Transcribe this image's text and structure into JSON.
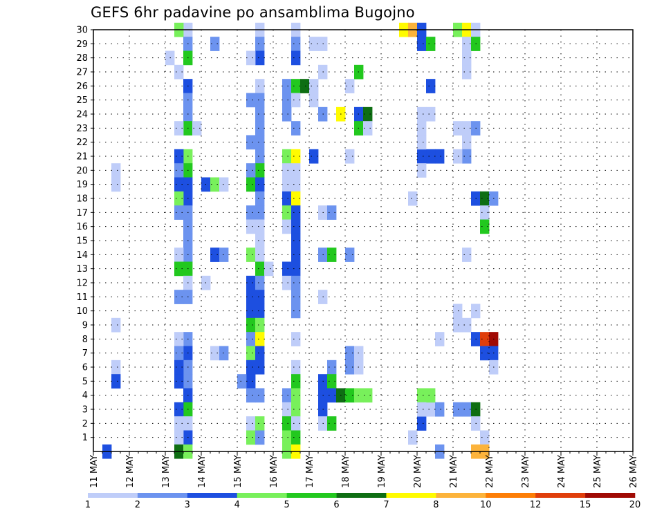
{
  "chart_data": {
    "type": "heatmap",
    "title": "GEFS 6hr padavine po ansamblima Bugojno",
    "xlabel": "",
    "ylabel": "",
    "x_range": [
      "11 MAY 00Z",
      "26 MAY 00Z"
    ],
    "x_step_hours": 6,
    "x_tick_labels": [
      "11 MAY",
      "12 MAY",
      "13 MAY",
      "14 MAY",
      "15 MAY",
      "16 MAY",
      "17 MAY",
      "18 MAY",
      "19 MAY",
      "20 MAY",
      "21 MAY",
      "22 MAY",
      "23 MAY",
      "24 MAY",
      "25 MAY",
      "26 MAY"
    ],
    "y_range": [
      0,
      30
    ],
    "y_tick_labels": [
      "1",
      "2",
      "3",
      "4",
      "5",
      "6",
      "7",
      "8",
      "9",
      "10",
      "11",
      "12",
      "13",
      "14",
      "15",
      "16",
      "17",
      "18",
      "19",
      "20",
      "21",
      "22",
      "23",
      "24",
      "25",
      "26",
      "27",
      "28",
      "29",
      "30"
    ],
    "grid": true,
    "colorbar": {
      "placement": "bottom",
      "tick_labels": [
        "1",
        "2",
        "3",
        "4",
        "5",
        "6",
        "7",
        "8",
        "10",
        "12",
        "15",
        "20"
      ],
      "colors": [
        "#bfcdf9",
        "#6c93ef",
        "#1d4fe0",
        "#78f05b",
        "#22c81e",
        "#0e6e13",
        "#fffb00",
        "#fcb33b",
        "#fd7e06",
        "#e03e0b",
        "#a00a04"
      ]
    },
    "cells": [
      [
        10,
        30,
        1
      ],
      [
        9,
        30,
        4
      ],
      [
        10,
        29,
        2
      ],
      [
        10,
        28,
        5
      ],
      [
        8,
        28,
        1
      ],
      [
        9,
        27,
        1
      ],
      [
        10,
        26,
        3
      ],
      [
        10,
        25,
        2
      ],
      [
        10,
        24,
        2
      ],
      [
        10,
        23,
        5
      ],
      [
        9,
        23,
        1
      ],
      [
        11,
        23,
        1
      ],
      [
        10,
        21,
        4
      ],
      [
        9,
        21,
        3
      ],
      [
        10,
        20,
        5
      ],
      [
        9,
        20,
        2
      ],
      [
        10,
        19,
        3
      ],
      [
        9,
        19,
        3
      ],
      [
        10,
        18,
        3
      ],
      [
        9,
        18,
        4
      ],
      [
        10,
        17,
        2
      ],
      [
        9,
        17,
        2
      ],
      [
        10,
        16,
        2
      ],
      [
        10,
        15,
        2
      ],
      [
        10,
        14,
        2
      ],
      [
        9,
        14,
        1
      ],
      [
        10,
        13,
        5
      ],
      [
        9,
        13,
        5
      ],
      [
        10,
        12,
        1
      ],
      [
        10,
        11,
        2
      ],
      [
        9,
        11,
        2
      ],
      [
        10,
        8,
        2
      ],
      [
        9,
        8,
        1
      ],
      [
        10,
        7,
        3
      ],
      [
        9,
        7,
        2
      ],
      [
        10,
        6,
        2
      ],
      [
        9,
        6,
        3
      ],
      [
        10,
        5,
        2
      ],
      [
        9,
        5,
        3
      ],
      [
        10,
        4,
        3
      ],
      [
        10,
        3,
        5
      ],
      [
        9,
        3,
        3
      ],
      [
        10,
        2,
        1
      ],
      [
        9,
        2,
        1
      ],
      [
        10,
        1,
        3
      ],
      [
        9,
        1,
        1
      ],
      [
        9,
        0,
        6
      ],
      [
        10,
        0,
        4
      ],
      [
        2,
        20,
        1
      ],
      [
        2,
        19,
        1
      ],
      [
        2,
        9,
        1
      ],
      [
        2,
        6,
        1
      ],
      [
        2,
        5,
        3
      ],
      [
        1,
        0,
        3
      ],
      [
        13,
        29,
        2
      ],
      [
        12,
        19,
        3
      ],
      [
        13,
        19,
        4
      ],
      [
        14,
        19,
        1
      ],
      [
        13,
        14,
        3
      ],
      [
        14,
        14,
        2
      ],
      [
        13,
        7,
        1
      ],
      [
        14,
        7,
        2
      ],
      [
        12,
        12,
        1
      ],
      [
        18,
        30,
        1
      ],
      [
        18,
        29,
        2
      ],
      [
        18,
        28,
        3
      ],
      [
        17,
        28,
        1
      ],
      [
        18,
        26,
        1
      ],
      [
        17,
        25,
        2
      ],
      [
        18,
        25,
        2
      ],
      [
        18,
        24,
        2
      ],
      [
        18,
        23,
        2
      ],
      [
        18,
        22,
        2
      ],
      [
        17,
        22,
        2
      ],
      [
        18,
        21,
        2
      ],
      [
        18,
        20,
        5
      ],
      [
        17,
        20,
        2
      ],
      [
        17,
        19,
        5
      ],
      [
        18,
        19,
        3
      ],
      [
        18,
        18,
        2
      ],
      [
        18,
        17,
        2
      ],
      [
        17,
        17,
        2
      ],
      [
        18,
        16,
        1
      ],
      [
        17,
        16,
        1
      ],
      [
        18,
        15,
        1
      ],
      [
        17,
        14,
        4
      ],
      [
        18,
        14,
        1
      ],
      [
        18,
        13,
        5
      ],
      [
        19,
        13,
        1
      ],
      [
        17,
        12,
        3
      ],
      [
        18,
        12,
        2
      ],
      [
        17,
        11,
        3
      ],
      [
        18,
        11,
        3
      ],
      [
        17,
        10,
        3
      ],
      [
        18,
        10,
        3
      ],
      [
        17,
        9,
        5
      ],
      [
        18,
        9,
        4
      ],
      [
        17,
        8,
        2
      ],
      [
        18,
        8,
        7
      ],
      [
        17,
        7,
        4
      ],
      [
        18,
        7,
        3
      ],
      [
        17,
        6,
        3
      ],
      [
        18,
        6,
        3
      ],
      [
        17,
        5,
        3
      ],
      [
        16,
        5,
        2
      ],
      [
        17,
        4,
        2
      ],
      [
        18,
        4,
        2
      ],
      [
        17,
        2,
        1
      ],
      [
        18,
        2,
        4
      ],
      [
        17,
        1,
        4
      ],
      [
        18,
        1,
        2
      ],
      [
        22,
        30,
        1
      ],
      [
        22,
        29,
        2
      ],
      [
        22,
        28,
        3
      ],
      [
        21,
        26,
        2
      ],
      [
        22,
        26,
        5
      ],
      [
        23,
        26,
        6
      ],
      [
        24,
        26,
        1
      ],
      [
        21,
        25,
        2
      ],
      [
        22,
        25,
        1
      ],
      [
        21,
        24,
        2
      ],
      [
        22,
        23,
        2
      ],
      [
        21,
        21,
        4
      ],
      [
        22,
        21,
        7
      ],
      [
        21,
        20,
        1
      ],
      [
        22,
        20,
        1
      ],
      [
        21,
        19,
        1
      ],
      [
        22,
        19,
        1
      ],
      [
        21,
        18,
        3
      ],
      [
        22,
        18,
        7
      ],
      [
        21,
        17,
        4
      ],
      [
        22,
        17,
        3
      ],
      [
        21,
        16,
        1
      ],
      [
        22,
        16,
        3
      ],
      [
        22,
        15,
        3
      ],
      [
        22,
        14,
        3
      ],
      [
        21,
        13,
        3
      ],
      [
        22,
        13,
        3
      ],
      [
        21,
        12,
        1
      ],
      [
        22,
        12,
        2
      ],
      [
        22,
        11,
        2
      ],
      [
        22,
        10,
        2
      ],
      [
        22,
        8,
        1
      ],
      [
        22,
        6,
        1
      ],
      [
        22,
        5,
        5
      ],
      [
        21,
        4,
        2
      ],
      [
        22,
        4,
        4
      ],
      [
        21,
        3,
        1
      ],
      [
        22,
        3,
        4
      ],
      [
        21,
        2,
        5
      ],
      [
        22,
        2,
        1
      ],
      [
        21,
        1,
        4
      ],
      [
        22,
        1,
        5
      ],
      [
        21,
        0,
        4
      ],
      [
        22,
        0,
        7
      ],
      [
        24,
        29,
        1
      ],
      [
        25,
        29,
        1
      ],
      [
        25,
        27,
        1
      ],
      [
        24,
        25,
        1
      ],
      [
        25,
        24,
        2
      ],
      [
        24,
        21,
        3
      ],
      [
        26,
        6,
        2
      ],
      [
        25,
        17,
        1
      ],
      [
        25,
        14,
        2
      ],
      [
        26,
        14,
        5
      ],
      [
        25,
        5,
        3
      ],
      [
        26,
        5,
        5
      ],
      [
        28,
        14,
        2
      ],
      [
        26,
        17,
        2
      ],
      [
        25,
        4,
        3
      ],
      [
        26,
        4,
        3
      ],
      [
        27,
        4,
        6
      ],
      [
        28,
        4,
        5
      ],
      [
        29,
        4,
        4
      ],
      [
        30,
        4,
        4
      ],
      [
        25,
        3,
        3
      ],
      [
        25,
        2,
        1
      ],
      [
        26,
        2,
        5
      ],
      [
        25,
        11,
        1
      ],
      [
        28,
        21,
        1
      ],
      [
        28,
        7,
        2
      ],
      [
        29,
        7,
        1
      ],
      [
        27,
        24,
        7
      ],
      [
        29,
        24,
        3
      ],
      [
        30,
        24,
        6
      ],
      [
        29,
        23,
        5
      ],
      [
        30,
        23,
        1
      ],
      [
        28,
        6,
        2
      ],
      [
        29,
        6,
        1
      ],
      [
        29,
        27,
        5
      ],
      [
        28,
        26,
        1
      ],
      [
        34,
        30,
        7
      ],
      [
        35,
        30,
        8
      ],
      [
        36,
        30,
        3
      ],
      [
        36,
        29,
        3
      ],
      [
        37,
        29,
        5
      ],
      [
        35,
        18,
        1
      ],
      [
        38,
        21,
        3
      ],
      [
        37,
        21,
        3
      ],
      [
        36,
        21,
        3
      ],
      [
        36,
        20,
        1
      ],
      [
        36,
        22,
        1
      ],
      [
        36,
        23,
        1
      ],
      [
        37,
        24,
        1
      ],
      [
        36,
        24,
        1
      ],
      [
        37,
        26,
        3
      ],
      [
        36,
        2,
        3
      ],
      [
        37,
        3,
        1
      ],
      [
        36,
        4,
        4
      ],
      [
        37,
        4,
        4
      ],
      [
        36,
        3,
        1
      ],
      [
        35,
        1,
        1
      ],
      [
        38,
        8,
        1
      ],
      [
        38,
        3,
        2
      ],
      [
        40,
        30,
        4
      ],
      [
        41,
        30,
        7
      ],
      [
        42,
        30,
        1
      ],
      [
        41,
        29,
        1
      ],
      [
        42,
        29,
        5
      ],
      [
        41,
        27,
        1
      ],
      [
        41,
        28,
        1
      ],
      [
        40,
        23,
        1
      ],
      [
        41,
        23,
        1
      ],
      [
        42,
        23,
        2
      ],
      [
        41,
        22,
        1
      ],
      [
        41,
        21,
        2
      ],
      [
        40,
        21,
        1
      ],
      [
        42,
        18,
        3
      ],
      [
        43,
        18,
        6
      ],
      [
        44,
        18,
        2
      ],
      [
        43,
        17,
        1
      ],
      [
        43,
        16,
        5
      ],
      [
        41,
        14,
        1
      ],
      [
        41,
        9,
        1
      ],
      [
        40,
        9,
        1
      ],
      [
        40,
        10,
        1
      ],
      [
        42,
        10,
        1
      ],
      [
        42,
        8,
        3
      ],
      [
        43,
        8,
        10
      ],
      [
        44,
        8,
        11
      ],
      [
        43,
        7,
        3
      ],
      [
        44,
        7,
        3
      ],
      [
        44,
        6,
        1
      ],
      [
        40,
        3,
        2
      ],
      [
        41,
        3,
        2
      ],
      [
        42,
        3,
        6
      ],
      [
        42,
        2,
        1
      ],
      [
        43,
        1,
        1
      ],
      [
        43,
        0,
        8
      ],
      [
        42,
        0,
        8
      ],
      [
        38,
        0,
        2
      ]
    ]
  }
}
